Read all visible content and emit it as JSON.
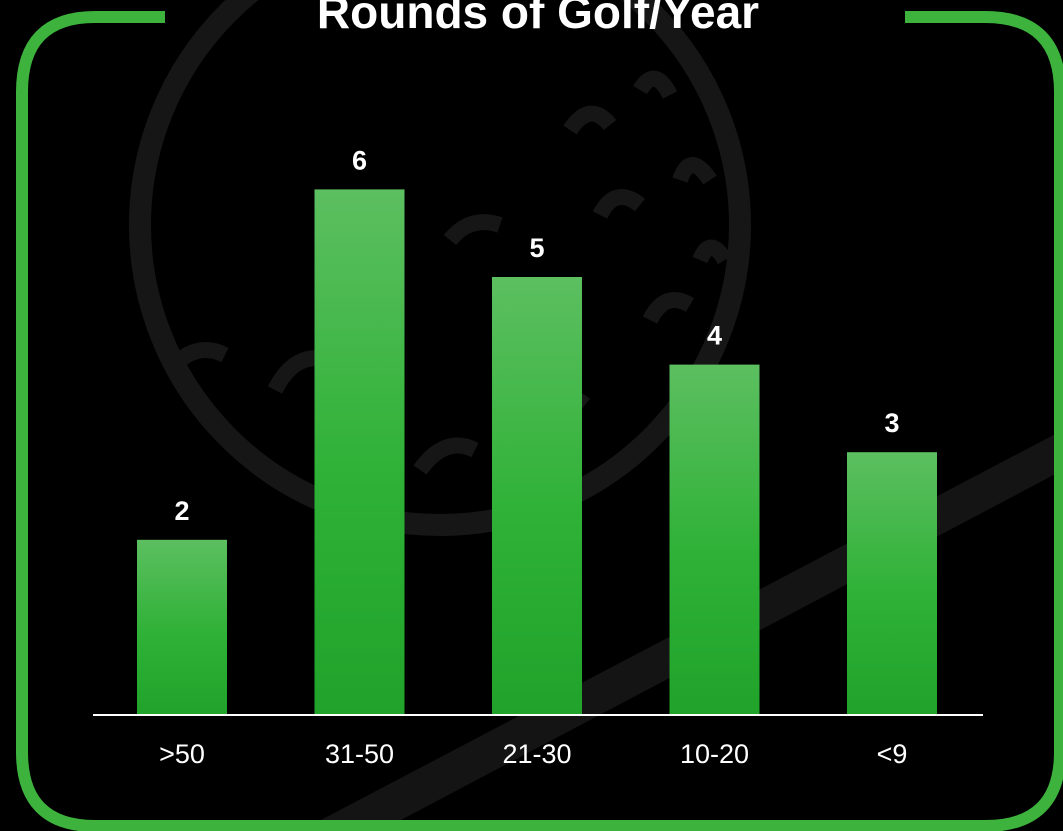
{
  "colors": {
    "background": "#000000",
    "frame_border": "#3db33d",
    "bar_top": "#5cbf60",
    "bar_bottom": "#21a32b",
    "text": "#ffffff",
    "axis": "#ffffff",
    "watermark": "#1a1a1a"
  },
  "watermark": {
    "icon": "golf-ball-icon",
    "description_icon": "diagonal-club-stroke"
  },
  "chart_data": {
    "type": "bar",
    "title": "Rounds of Golf/Year",
    "categories": [
      ">50",
      "31-50",
      "21-30",
      "10-20",
      "<9"
    ],
    "values": [
      2,
      6,
      5,
      4,
      3
    ],
    "data_labels": [
      "2",
      "6",
      "5",
      "4",
      "3"
    ],
    "xlabel": "",
    "ylabel": "",
    "ylim": [
      0,
      6
    ],
    "grid": false,
    "legend": "none"
  }
}
